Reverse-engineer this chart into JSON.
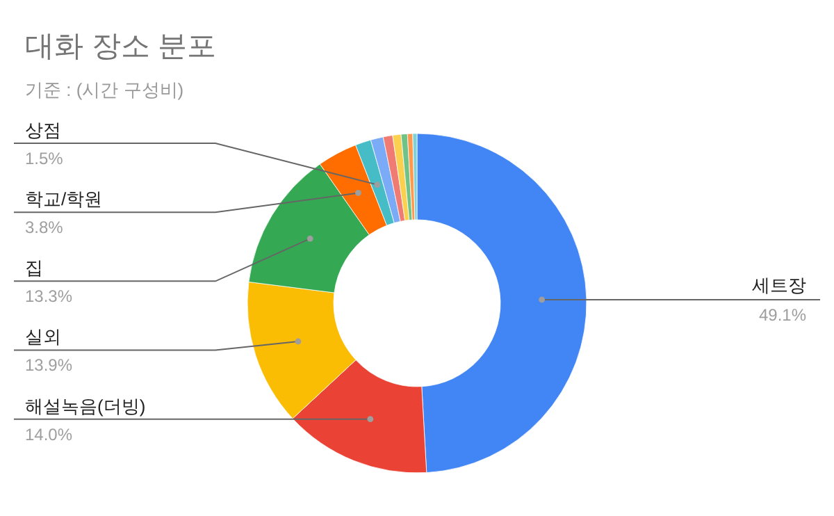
{
  "chart_data": {
    "type": "donut",
    "title": "대화 장소 분포",
    "subtitle": "기준 : (시간 구성비)",
    "categories": [
      "세트장",
      "해설녹음(더빙)",
      "실외",
      "집",
      "학교/학원",
      "상점",
      null,
      null,
      null,
      null,
      null,
      null
    ],
    "values": [
      49.1,
      14.0,
      13.9,
      13.3,
      3.8,
      1.5,
      1.2,
      0.9,
      0.8,
      0.6,
      0.5,
      0.4
    ],
    "colors": [
      "#4285f4",
      "#ea4335",
      "#fbbc04",
      "#34a853",
      "#ff6d01",
      "#46bdc6",
      "#7baaf7",
      "#f07b72",
      "#fcd04f",
      "#71c287",
      "#ff994d",
      "#7ed1d7"
    ],
    "value_labels": [
      "49.1%",
      "14.0%",
      "13.9%",
      "13.3%",
      "3.8%",
      "1.5%",
      null,
      null,
      null,
      null,
      null,
      null
    ]
  }
}
